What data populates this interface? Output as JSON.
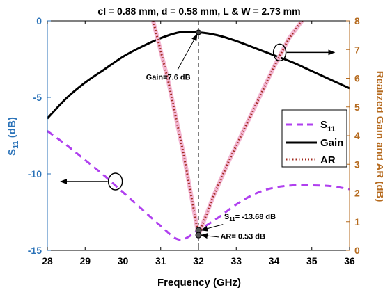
{
  "chart_data": {
    "type": "line",
    "title": "cl = 0.88 mm, d = 0.58 mm, L & W = 2.73 mm",
    "xlabel": "Frequency (GHz)",
    "ylabel_left": "S",
    "ylabel_left_sub": "11",
    "ylabel_left_unit": " (dB)",
    "ylabel_right": "Realized Gain and AR (dB)",
    "xlim": [
      28,
      36
    ],
    "ylim_left": [
      -15,
      0
    ],
    "ylim_right": [
      0,
      8
    ],
    "x_ticks": [
      28,
      29,
      30,
      31,
      32,
      33,
      34,
      35,
      36
    ],
    "y_left_ticks": [
      0,
      -5,
      -10,
      -15
    ],
    "y_right_ticks": [
      0,
      1,
      2,
      3,
      4,
      5,
      6,
      7,
      8
    ],
    "grid": false,
    "legend_position": "center-right",
    "colors": {
      "s11": "#b040ef",
      "gain": "#000000",
      "ar": "#a0281c",
      "ar_halo": "#f4b8d4",
      "left_axis": "#2a72b8",
      "right_axis": "#b56a1e"
    },
    "series": [
      {
        "name": "S",
        "name_sub": "11",
        "key": "s11",
        "axis": "left",
        "style": "dashed",
        "x": [
          28,
          28.5,
          29,
          29.5,
          30,
          30.5,
          31,
          31.5,
          32,
          32.5,
          33,
          33.5,
          34,
          34.5,
          35,
          35.5,
          36
        ],
        "y": [
          -7.2,
          -8.1,
          -9.1,
          -10.1,
          -11.2,
          -12.3,
          -13.4,
          -14.3,
          -13.68,
          -12.9,
          -12.0,
          -11.3,
          -10.9,
          -10.75,
          -10.75,
          -10.8,
          -11.0
        ]
      },
      {
        "name": "Gain",
        "key": "gain",
        "axis": "right",
        "style": "solid",
        "x": [
          28,
          28.5,
          29,
          29.5,
          30,
          30.5,
          31,
          31.5,
          32,
          32.5,
          33,
          33.5,
          34,
          34.5,
          35,
          35.5,
          36
        ],
        "y": [
          4.6,
          5.3,
          5.85,
          6.3,
          6.75,
          7.1,
          7.4,
          7.6,
          7.6,
          7.5,
          7.3,
          7.05,
          6.8,
          6.55,
          6.25,
          5.95,
          5.65
        ]
      },
      {
        "name": "AR",
        "key": "ar",
        "axis": "right",
        "style": "dotted",
        "x": [
          30.8,
          31.2,
          31.6,
          32.0,
          32.4,
          32.8,
          33.2,
          33.6,
          34.0,
          34.4,
          34.8
        ],
        "y": [
          8.0,
          5.9,
          3.4,
          0.53,
          1.9,
          3.1,
          4.2,
          5.3,
          6.4,
          7.4,
          8.1
        ]
      }
    ],
    "annotations": [
      {
        "key": "gain_marker",
        "text": "Gain=7.6 dB",
        "x": 32.0,
        "y": 7.6,
        "axis": "right"
      },
      {
        "key": "s11_marker",
        "text": "S",
        "text_sub": "11",
        "text_rest": "= -13.68 dB",
        "x": 32.0,
        "y": -13.68,
        "axis": "left"
      },
      {
        "key": "ar_marker",
        "text": "AR= 0.53 dB",
        "x": 32.0,
        "y": 0.53,
        "axis": "right"
      }
    ],
    "reference_line_x": 32
  }
}
